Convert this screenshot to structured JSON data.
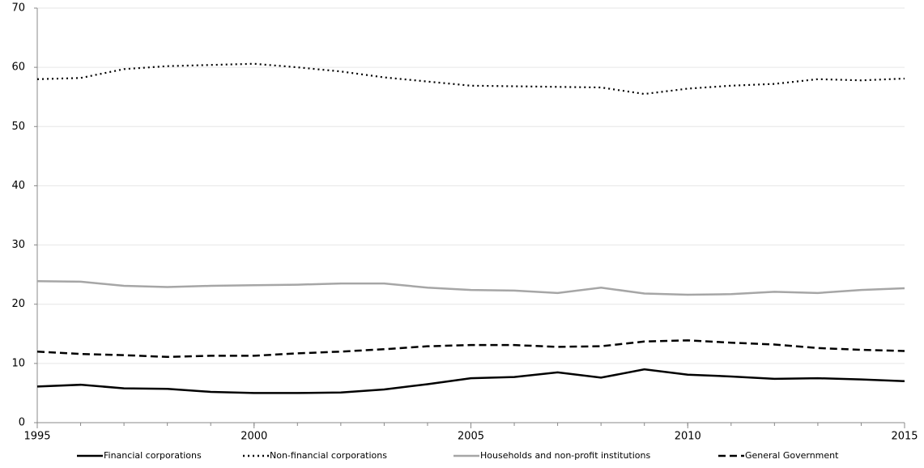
{
  "chart_data": {
    "type": "line",
    "x": [
      1995,
      1996,
      1997,
      1998,
      1999,
      2000,
      2001,
      2002,
      2003,
      2004,
      2005,
      2006,
      2007,
      2008,
      2009,
      2010,
      2011,
      2012,
      2013,
      2014,
      2015
    ],
    "series": [
      {
        "name": "Financial corporations",
        "color": "#000000",
        "dash": "solid",
        "values": [
          6.1,
          6.4,
          5.8,
          5.7,
          5.2,
          5.0,
          5.0,
          5.1,
          5.6,
          6.5,
          7.5,
          7.7,
          8.5,
          7.6,
          9.0,
          8.1,
          7.8,
          7.4,
          7.5,
          7.3,
          7.0
        ]
      },
      {
        "name": "Non-financial corporations",
        "color": "#000000",
        "dash": "dotted",
        "values": [
          58.0,
          58.2,
          59.7,
          60.2,
          60.4,
          60.6,
          60.0,
          59.3,
          58.3,
          57.6,
          56.9,
          56.8,
          56.7,
          56.6,
          55.5,
          56.4,
          56.9,
          57.2,
          58.0,
          57.8,
          58.1
        ]
      },
      {
        "name": "Households and non-profit institutions",
        "color": "#a6a6a6",
        "dash": "solid",
        "values": [
          23.9,
          23.8,
          23.1,
          22.9,
          23.1,
          23.2,
          23.3,
          23.5,
          23.5,
          22.8,
          22.4,
          22.3,
          21.9,
          22.8,
          21.8,
          21.6,
          21.7,
          22.1,
          21.9,
          22.4,
          22.7
        ]
      },
      {
        "name": "General Government",
        "color": "#000000",
        "dash": "dashed",
        "values": [
          12.0,
          11.6,
          11.4,
          11.1,
          11.3,
          11.3,
          11.7,
          12.0,
          12.4,
          12.9,
          13.1,
          13.1,
          12.8,
          12.9,
          13.7,
          13.9,
          13.5,
          13.2,
          12.6,
          12.3,
          12.1
        ]
      }
    ],
    "xlim": [
      1995,
      2015
    ],
    "xticks": [
      1995,
      2000,
      2005,
      2010,
      2015
    ],
    "ylim": [
      0,
      70
    ],
    "yticks": [
      0,
      10,
      20,
      30,
      40,
      50,
      60,
      70
    ],
    "grid": true,
    "legend": "bottom"
  }
}
